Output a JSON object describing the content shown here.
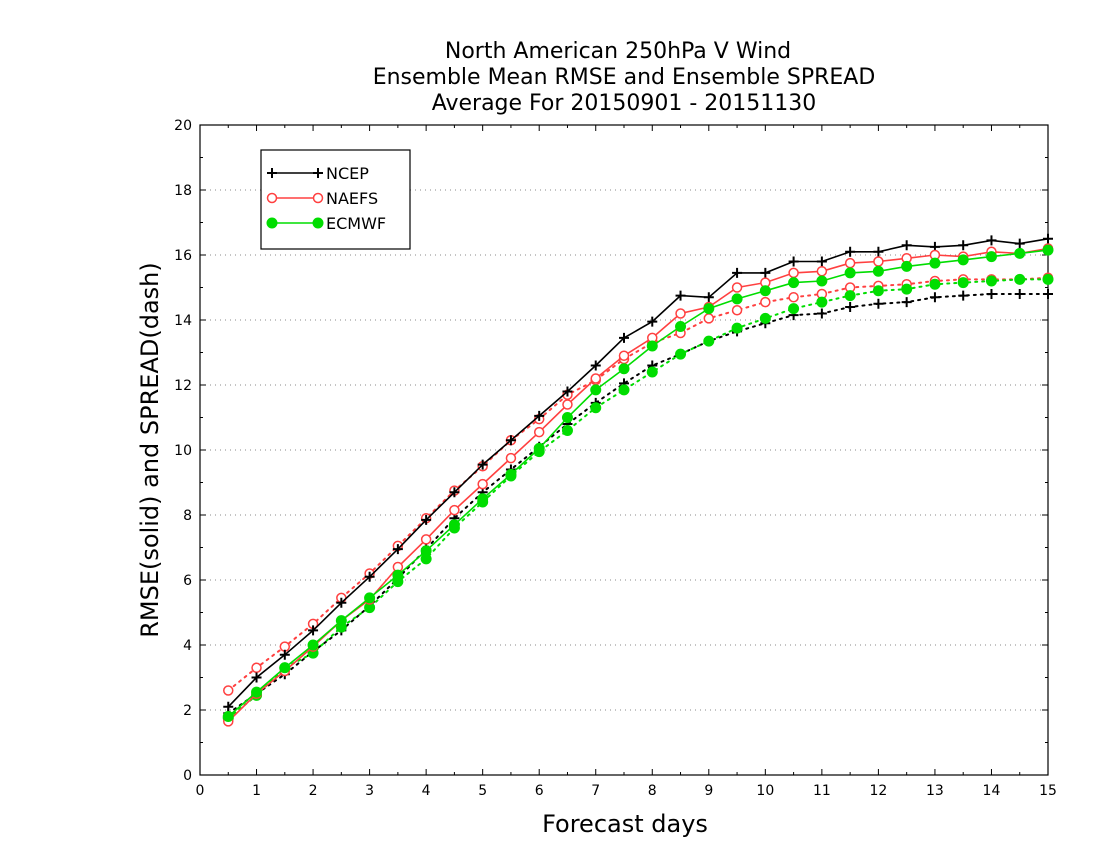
{
  "chart_data": {
    "type": "line",
    "title_lines": [
      "North American 250hPa V Wind",
      "Ensemble Mean RMSE and Ensemble SPREAD",
      "Average For 20150901 - 20151130"
    ],
    "xlabel": "Forecast days",
    "ylabel": "RMSE(solid) and SPREAD(dash)",
    "xlim": [
      0,
      15
    ],
    "ylim": [
      0,
      20
    ],
    "x_ticks": [
      "0",
      "1",
      "2",
      "3",
      "4",
      "5",
      "6",
      "7",
      "8",
      "9",
      "10",
      "11",
      "12",
      "13",
      "14",
      "15"
    ],
    "y_ticks": [
      "0",
      "2",
      "4",
      "6",
      "8",
      "10",
      "12",
      "14",
      "16",
      "18",
      "20"
    ],
    "grid": true,
    "legend_position": "top-left",
    "x": [
      0.5,
      1,
      1.5,
      2,
      2.5,
      3,
      3.5,
      4,
      4.5,
      5,
      5.5,
      6,
      6.5,
      7,
      7.5,
      8,
      8.5,
      9,
      9.5,
      10,
      10.5,
      11,
      11.5,
      12,
      12.5,
      13,
      13.5,
      14,
      14.5,
      15
    ],
    "series": [
      {
        "name": "NCEP",
        "color": "#000000",
        "marker": "plus",
        "rmse": [
          2.1,
          3.0,
          3.7,
          4.45,
          5.3,
          6.1,
          6.95,
          7.85,
          8.7,
          9.55,
          10.3,
          11.05,
          11.8,
          12.6,
          13.45,
          13.95,
          14.75,
          14.7,
          15.45,
          15.45,
          15.8,
          15.8,
          16.1,
          16.1,
          16.3,
          16.25,
          16.3,
          16.45,
          16.35,
          16.5
        ],
        "spread": [
          1.9,
          2.5,
          3.1,
          3.8,
          4.45,
          5.2,
          6.05,
          6.95,
          7.9,
          8.7,
          9.4,
          10.1,
          10.8,
          11.45,
          12.05,
          12.6,
          12.95,
          13.35,
          13.65,
          13.9,
          14.15,
          14.2,
          14.4,
          14.5,
          14.55,
          14.7,
          14.75,
          14.8,
          14.8,
          14.8
        ]
      },
      {
        "name": "NAEFS",
        "color": "#ff4040",
        "marker": "circle-open",
        "rmse": [
          1.65,
          2.5,
          3.2,
          3.95,
          4.75,
          5.4,
          6.4,
          7.25,
          8.15,
          8.95,
          9.75,
          10.55,
          11.4,
          12.2,
          12.9,
          13.45,
          14.2,
          14.4,
          15.0,
          15.15,
          15.45,
          15.5,
          15.75,
          15.8,
          15.9,
          16.0,
          15.95,
          16.1,
          16.05,
          16.2
        ],
        "spread": [
          2.6,
          3.3,
          3.95,
          4.65,
          5.45,
          6.2,
          7.05,
          7.9,
          8.75,
          9.5,
          10.3,
          10.95,
          11.7,
          12.15,
          12.8,
          13.3,
          13.6,
          14.05,
          14.3,
          14.55,
          14.7,
          14.8,
          15.0,
          15.05,
          15.1,
          15.2,
          15.25,
          15.25,
          15.25,
          15.3
        ]
      },
      {
        "name": "ECMWF",
        "color": "#00dd00",
        "marker": "circle-filled",
        "rmse": [
          1.8,
          2.55,
          3.3,
          4.0,
          4.75,
          5.45,
          6.15,
          6.9,
          7.7,
          8.5,
          9.25,
          10.05,
          11.0,
          11.85,
          12.5,
          13.2,
          13.8,
          14.35,
          14.65,
          14.9,
          15.15,
          15.2,
          15.45,
          15.5,
          15.65,
          15.75,
          15.85,
          15.95,
          16.05,
          16.15
        ],
        "spread": [
          1.75,
          2.45,
          3.3,
          3.75,
          4.55,
          5.15,
          5.95,
          6.65,
          7.6,
          8.4,
          9.2,
          9.95,
          10.6,
          11.3,
          11.85,
          12.4,
          12.95,
          13.35,
          13.75,
          14.05,
          14.35,
          14.55,
          14.75,
          14.9,
          14.95,
          15.1,
          15.15,
          15.2,
          15.25,
          15.25
        ]
      }
    ]
  }
}
